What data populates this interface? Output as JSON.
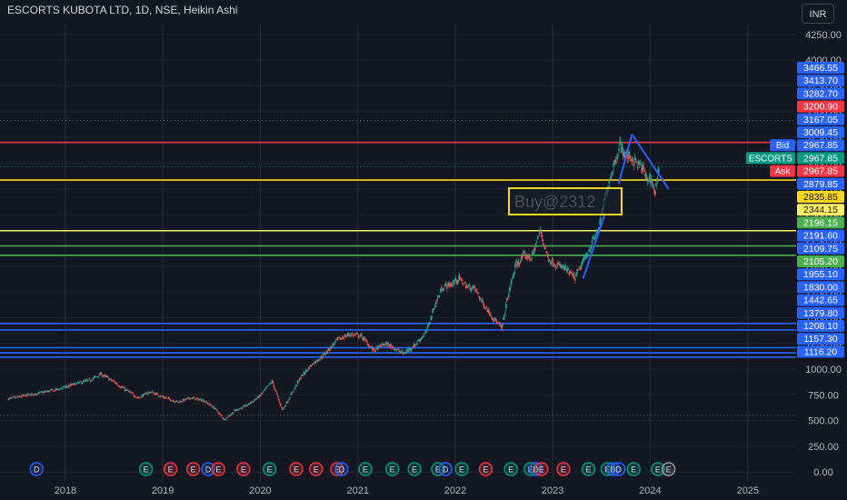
{
  "header": {
    "title": "ESCORTS KUBOTA LTD, 1D, NSE, Heikin Ashi",
    "currency": "INR"
  },
  "annotation": {
    "label": "Buy@2312"
  },
  "price_tags": [
    {
      "value": "3466.55",
      "bg": "#2962ff"
    },
    {
      "value": "3413.70",
      "bg": "#2962ff"
    },
    {
      "value": "3282.70",
      "bg": "#2962ff"
    },
    {
      "value": "3200.90",
      "bg": "#f23645"
    },
    {
      "value": "3167.05",
      "bg": "#2962ff"
    },
    {
      "value": "3009.45",
      "bg": "#2962ff"
    },
    {
      "value": "2967.85",
      "bg": "#2962ff",
      "badge": "Bid",
      "badge_bg": "#2962ff"
    },
    {
      "value": "2967.85",
      "bg": "#089981",
      "badge": "ESCORTS",
      "badge_bg": "#089981"
    },
    {
      "value": "2967.85",
      "bg": "#f23645",
      "badge": "Ask",
      "badge_bg": "#f23645"
    },
    {
      "value": "2879.85",
      "bg": "#2962ff"
    },
    {
      "value": "2835.85",
      "bg": "#f9d71c",
      "fg": "#131722"
    },
    {
      "value": "2344.15",
      "bg": "#fff066",
      "fg": "#131722"
    },
    {
      "value": "2196.15",
      "bg": "#4caf50"
    },
    {
      "value": "2191.60",
      "bg": "#2962ff"
    },
    {
      "value": "2109.75",
      "bg": "#2962ff"
    },
    {
      "value": "2105.20",
      "bg": "#4caf50"
    },
    {
      "value": "1955.10",
      "bg": "#2962ff"
    },
    {
      "value": "1830.00",
      "bg": "#2962ff"
    },
    {
      "value": "1442.65",
      "bg": "#2962ff"
    },
    {
      "value": "1379.80",
      "bg": "#2962ff"
    },
    {
      "value": "1208.10",
      "bg": "#2962ff"
    },
    {
      "value": "1157.30",
      "bg": "#2962ff"
    },
    {
      "value": "1116.20",
      "bg": "#2962ff"
    }
  ],
  "events": [
    {
      "date": "2017-09-15",
      "letter": "D",
      "kind": "dividend"
    },
    {
      "date": "2018-10-30",
      "letter": "E",
      "kind": "earnings"
    },
    {
      "date": "2019-01-30",
      "letter": "E",
      "kind": "earnings-red"
    },
    {
      "date": "2019-04-25",
      "letter": "E",
      "kind": "earnings-red"
    },
    {
      "date": "2019-06-20",
      "letter": "D",
      "kind": "dividend"
    },
    {
      "date": "2019-07-28",
      "letter": "E",
      "kind": "earnings-red"
    },
    {
      "date": "2019-10-30",
      "letter": "E",
      "kind": "earnings-red"
    },
    {
      "date": "2020-02-05",
      "letter": "E",
      "kind": "earnings"
    },
    {
      "date": "2020-05-15",
      "letter": "E",
      "kind": "earnings-red"
    },
    {
      "date": "2020-07-28",
      "letter": "E",
      "kind": "earnings-red"
    },
    {
      "date": "2020-10-15",
      "letter": "E",
      "kind": "earnings-red"
    },
    {
      "date": "2020-11-01",
      "letter": "D",
      "kind": "dividend"
    },
    {
      "date": "2021-01-29",
      "letter": "E",
      "kind": "earnings"
    },
    {
      "date": "2021-05-10",
      "letter": "E",
      "kind": "earnings"
    },
    {
      "date": "2021-08-01",
      "letter": "E",
      "kind": "earnings"
    },
    {
      "date": "2021-10-28",
      "letter": "E",
      "kind": "earnings"
    },
    {
      "date": "2021-11-25",
      "letter": "D",
      "kind": "dividend"
    },
    {
      "date": "2022-01-25",
      "letter": "E",
      "kind": "earnings"
    },
    {
      "date": "2022-04-25",
      "letter": "E",
      "kind": "earnings-red"
    },
    {
      "date": "2022-07-28",
      "letter": "E",
      "kind": "earnings"
    },
    {
      "date": "2022-10-10",
      "letter": "E",
      "kind": "earnings"
    },
    {
      "date": "2022-10-30",
      "letter": "D",
      "kind": "dividend"
    },
    {
      "date": "2022-11-20",
      "letter": "E",
      "kind": "earnings-red"
    },
    {
      "date": "2023-02-10",
      "letter": "E",
      "kind": "earnings-red"
    },
    {
      "date": "2023-05-15",
      "letter": "E",
      "kind": "earnings"
    },
    {
      "date": "2023-07-25",
      "letter": "E",
      "kind": "earnings"
    },
    {
      "date": "2023-08-15",
      "letter": "D",
      "kind": "dividend"
    },
    {
      "date": "2023-09-05",
      "letter": "D",
      "kind": "dividend"
    },
    {
      "date": "2023-10-31",
      "letter": "E",
      "kind": "earnings"
    },
    {
      "date": "2024-01-30",
      "letter": "E",
      "kind": "earnings"
    },
    {
      "date": "2024-03-10",
      "letter": "E",
      "kind": "earnings-upcoming"
    }
  ],
  "chart_data": {
    "type": "line",
    "style": "Heikin Ashi candles",
    "series": [
      {
        "name": "ESCORTS",
        "points": [
          [
            "2017-06-01",
            710
          ],
          [
            "2017-08-01",
            740
          ],
          [
            "2017-10-01",
            770
          ],
          [
            "2017-12-01",
            800
          ],
          [
            "2018-02-01",
            850
          ],
          [
            "2018-04-01",
            890
          ],
          [
            "2018-05-15",
            950
          ],
          [
            "2018-07-01",
            880
          ],
          [
            "2018-08-15",
            800
          ],
          [
            "2018-10-01",
            720
          ],
          [
            "2018-11-15",
            780
          ],
          [
            "2019-01-01",
            730
          ],
          [
            "2019-03-01",
            680
          ],
          [
            "2019-04-15",
            720
          ],
          [
            "2019-06-01",
            700
          ],
          [
            "2019-07-15",
            620
          ],
          [
            "2019-08-20",
            510
          ],
          [
            "2019-10-01",
            600
          ],
          [
            "2019-11-15",
            650
          ],
          [
            "2020-01-01",
            740
          ],
          [
            "2020-02-15",
            880
          ],
          [
            "2020-03-25",
            600
          ],
          [
            "2020-04-25",
            750
          ],
          [
            "2020-06-01",
            920
          ],
          [
            "2020-07-15",
            1050
          ],
          [
            "2020-09-01",
            1150
          ],
          [
            "2020-10-15",
            1280
          ],
          [
            "2020-12-01",
            1340
          ],
          [
            "2021-01-15",
            1320
          ],
          [
            "2021-03-01",
            1180
          ],
          [
            "2021-04-15",
            1250
          ],
          [
            "2021-05-15",
            1210
          ],
          [
            "2021-06-20",
            1150
          ],
          [
            "2021-08-01",
            1230
          ],
          [
            "2021-09-15",
            1360
          ],
          [
            "2021-10-15",
            1610
          ],
          [
            "2021-11-15",
            1800
          ],
          [
            "2021-12-15",
            1820
          ],
          [
            "2022-01-15",
            1880
          ],
          [
            "2022-02-15",
            1800
          ],
          [
            "2022-03-15",
            1780
          ],
          [
            "2022-04-15",
            1640
          ],
          [
            "2022-05-15",
            1530
          ],
          [
            "2022-06-25",
            1390
          ],
          [
            "2022-07-15",
            1680
          ],
          [
            "2022-08-15",
            2000
          ],
          [
            "2022-09-15",
            2100
          ],
          [
            "2022-10-15",
            2080
          ],
          [
            "2022-11-15",
            2344
          ],
          [
            "2022-12-15",
            2080
          ],
          [
            "2023-01-15",
            2010
          ],
          [
            "2023-02-15",
            1980
          ],
          [
            "2023-03-25",
            1880
          ],
          [
            "2023-04-25",
            2040
          ],
          [
            "2023-05-25",
            2200
          ],
          [
            "2023-06-25",
            2380
          ],
          [
            "2023-07-25",
            2760
          ],
          [
            "2023-08-15",
            2960
          ],
          [
            "2023-09-10",
            3180
          ],
          [
            "2023-10-01",
            3070
          ],
          [
            "2023-10-20",
            3060
          ],
          [
            "2023-11-10",
            3000
          ],
          [
            "2023-12-01",
            2960
          ],
          [
            "2023-12-20",
            2850
          ],
          [
            "2024-01-05",
            2850
          ],
          [
            "2024-01-20",
            2700
          ],
          [
            "2024-02-05",
            2967.85
          ]
        ]
      }
    ],
    "y_axis": {
      "ticks": [
        "4250.00",
        "4000.00",
        "3750.00",
        "3500.00",
        "3250.00",
        "3000.00",
        "2750.00",
        "2500.00",
        "2250.00",
        "2000.00",
        "1750.00",
        "1500.00",
        "1250.00",
        "1000.00",
        "750.00",
        "500.00",
        "250.00",
        "0.00"
      ],
      "ylim": [
        -95,
        4355
      ]
    },
    "x_axis": {
      "ticks": [
        "2018",
        "2019",
        "2020",
        "2021",
        "2022",
        "2023",
        "2024",
        "2025"
      ],
      "xlim": [
        "2017-05-01",
        "2025-07-01"
      ]
    },
    "horizontal_lines": [
      {
        "value": 3200.9,
        "color": "#f23645"
      },
      {
        "value": 2835.85,
        "color": "#f9d71c"
      },
      {
        "value": 2344.15,
        "color": "#fff066"
      },
      {
        "value": 2196.15,
        "color": "#4caf50"
      },
      {
        "value": 2105.2,
        "color": "#4caf50"
      },
      {
        "value": 1442.65,
        "color": "#2962ff"
      },
      {
        "value": 1379.8,
        "color": "#2962ff"
      },
      {
        "value": 1208.1,
        "color": "#2962ff"
      },
      {
        "value": 1157.3,
        "color": "#2962ff"
      },
      {
        "value": 1116.2,
        "color": "#2962ff"
      },
      {
        "value": 3413.7,
        "color": "#787b86",
        "style": "dotted"
      },
      {
        "value": 2967.85,
        "color": "#089981",
        "style": "dotted"
      },
      {
        "value": 550,
        "color": "#787b86",
        "style": "dotted"
      }
    ],
    "trendlines": [
      {
        "from": [
          "2023-04-25",
          1880
        ],
        "to": [
          "2023-07-15",
          2500
        ]
      },
      {
        "from": [
          "2023-09-05",
          2800
        ],
        "to": [
          "2023-10-25",
          3280
        ]
      },
      {
        "from": [
          "2023-10-25",
          3280
        ],
        "to": [
          "2024-03-10",
          2750
        ]
      }
    ],
    "colors": {
      "up": "#26a69a",
      "down": "#ef5350",
      "grid": "#2a2e39",
      "background": "#131722"
    }
  }
}
